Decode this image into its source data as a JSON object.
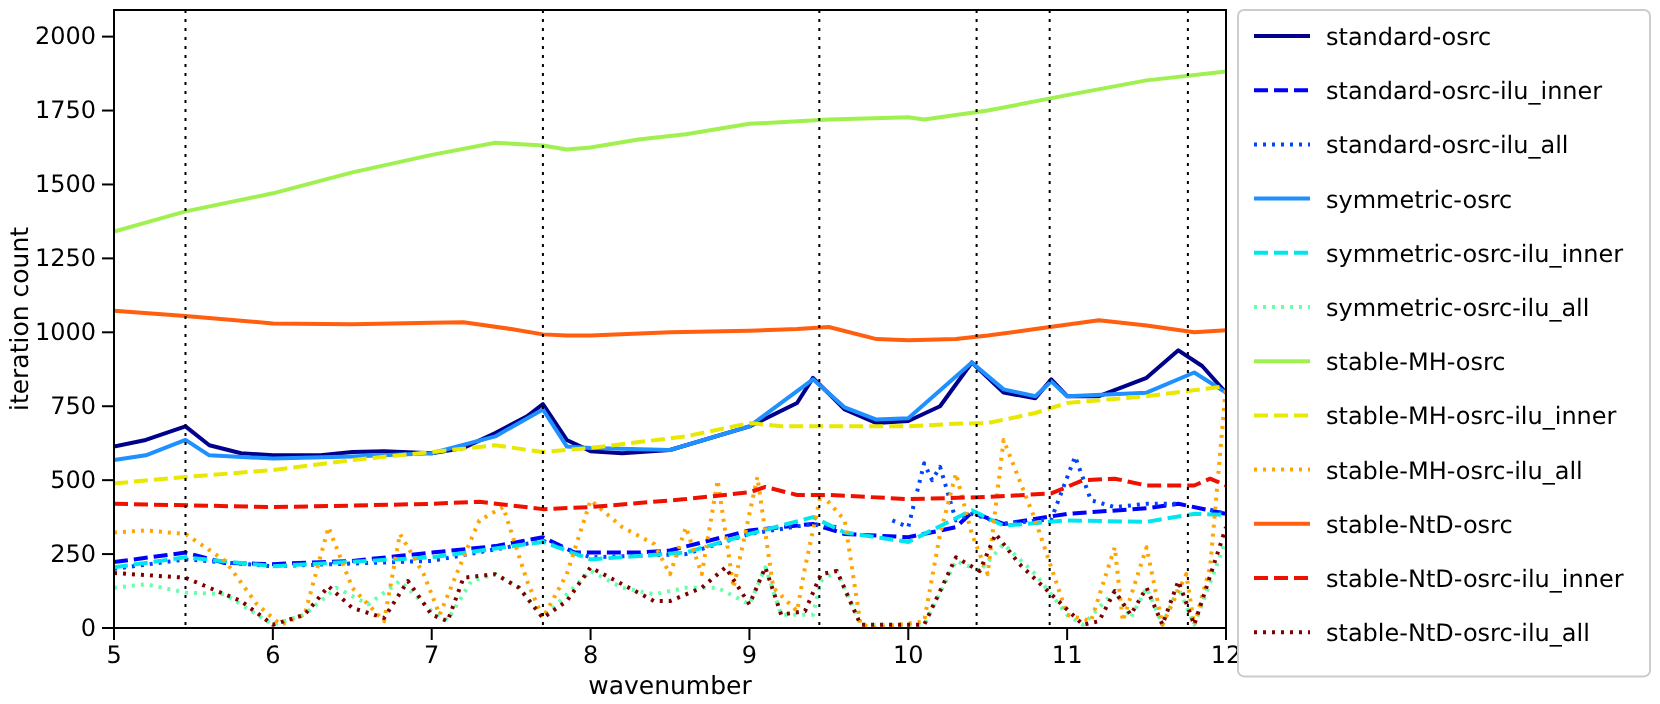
{
  "chart_data": {
    "type": "line",
    "xlabel": "wavenumber",
    "ylabel": "iteration count",
    "xlim": [
      5,
      12
    ],
    "xticks": [
      5,
      6,
      7,
      8,
      9,
      10,
      11,
      12
    ],
    "ylim": [
      0,
      2090
    ],
    "yticks": [
      0,
      250,
      500,
      750,
      1000,
      1250,
      1500,
      1750,
      2000
    ],
    "grid": false,
    "legend": "right",
    "marker": "none",
    "ref_lines": [
      {
        "axis": "x",
        "value": 5.45,
        "color": "#000000",
        "line_style": "dotted"
      },
      {
        "axis": "x",
        "value": 7.7,
        "color": "#000000",
        "line_style": "dotted"
      },
      {
        "axis": "x",
        "value": 9.44,
        "color": "#000000",
        "line_style": "dotted"
      },
      {
        "axis": "x",
        "value": 10.43,
        "color": "#000000",
        "line_style": "dotted"
      },
      {
        "axis": "x",
        "value": 10.89,
        "color": "#000000",
        "line_style": "dotted"
      },
      {
        "axis": "x",
        "value": 11.76,
        "color": "#000000",
        "line_style": "dotted"
      }
    ],
    "series": [
      {
        "name": "standard-osrc",
        "color": "#00008b",
        "line_style": "solid",
        "x": [
          5,
          5.2,
          5.45,
          5.6,
          5.8,
          6,
          6.3,
          6.5,
          6.7,
          7,
          7.2,
          7.4,
          7.6,
          7.7,
          7.85,
          8,
          8.2,
          8.5,
          9,
          9.3,
          9.4,
          9.6,
          9.8,
          10,
          10.2,
          10.4,
          10.6,
          10.8,
          10.9,
          11,
          11.2,
          11.5,
          11.7,
          11.85,
          12
        ],
        "values": [
          614,
          636,
          682,
          618,
          591,
          584,
          584,
          595,
          598,
          591,
          609,
          659,
          716,
          757,
          636,
          598,
          591,
          602,
          682,
          761,
          846,
          739,
          693,
          700,
          750,
          898,
          796,
          777,
          841,
          784,
          784,
          846,
          939,
          886,
          796
        ]
      },
      {
        "name": "standard-osrc-ilu_inner",
        "color": "#0000ff",
        "line_style": "dashed",
        "x": [
          5,
          5.45,
          5.7,
          6,
          6.5,
          7,
          7.4,
          7.7,
          7.9,
          8.3,
          8.5,
          9,
          9.4,
          9.6,
          10,
          10.3,
          10.4,
          10.6,
          11,
          11.5,
          11.7,
          12
        ],
        "values": [
          223,
          255,
          220,
          216,
          227,
          255,
          277,
          307,
          255,
          255,
          262,
          330,
          352,
          318,
          307,
          341,
          391,
          352,
          386,
          405,
          420,
          386
        ]
      },
      {
        "name": "standard-osrc-ilu_all",
        "color": "#0044ff",
        "line_style": "dotted",
        "x": [
          5,
          5.45,
          6,
          7,
          7.7,
          8,
          8.6,
          9,
          9.4,
          9.55,
          9.63,
          9.75,
          9.87,
          9.9,
          10,
          10.1,
          10.15,
          10.2,
          10.3,
          10.4,
          10.6,
          10.9,
          11.05,
          11.15,
          11.3,
          11.5,
          11.69,
          11.72,
          11.79,
          11.86,
          11.9,
          12
        ],
        "values": [
          200,
          232,
          209,
          227,
          295,
          239,
          250,
          318,
          352,
          341,
          null,
          null,
          null,
          364,
          341,
          557,
          500,
          545,
          364,
          386,
          352,
          368,
          580,
          432,
          409,
          420,
          420,
          null,
          null,
          null,
          400,
          386
        ]
      },
      {
        "name": "symmetric-osrc",
        "color": "#1e90ff",
        "line_style": "solid",
        "x": [
          5,
          5.2,
          5.45,
          5.6,
          6,
          6.5,
          7,
          7.4,
          7.7,
          7.85,
          8,
          8.5,
          9,
          9.4,
          9.6,
          9.8,
          10,
          10.4,
          10.6,
          10.8,
          10.9,
          11,
          11.5,
          11.8,
          12
        ],
        "values": [
          568,
          584,
          636,
          584,
          573,
          580,
          591,
          648,
          739,
          614,
          609,
          602,
          682,
          841,
          746,
          705,
          709,
          898,
          807,
          784,
          834,
          784,
          796,
          864,
          796
        ]
      },
      {
        "name": "symmetric-osrc-ilu_inner",
        "color": "#00e5ee",
        "line_style": "dashed",
        "x": [
          5,
          5.45,
          6,
          7,
          7.7,
          8,
          8.6,
          9,
          9.4,
          9.6,
          10,
          10.4,
          10.6,
          11,
          11.5,
          11.8,
          12
        ],
        "values": [
          205,
          239,
          209,
          239,
          291,
          232,
          255,
          318,
          375,
          323,
          291,
          398,
          346,
          364,
          359,
          386,
          382
        ]
      },
      {
        "name": "symmetric-osrc-ilu_all",
        "color": "#66ffaa",
        "line_style": "dotted",
        "x": [
          5,
          5.2,
          5.45,
          5.7,
          6,
          6.2,
          6.4,
          6.6,
          6.8,
          7,
          7.1,
          7.25,
          7.4,
          7.55,
          7.7,
          8,
          8.2,
          8.4,
          8.6,
          8.8,
          9,
          9.1,
          9.2,
          9.4,
          9.45,
          9.55,
          9.7,
          10.1,
          10.3,
          10.45,
          10.6,
          10.8,
          11,
          11.1,
          11.3,
          11.4,
          11.5,
          11.6,
          11.7,
          11.8,
          12
        ],
        "values": [
          136,
          148,
          120,
          114,
          11,
          45,
          136,
          80,
          159,
          57,
          27,
          159,
          182,
          136,
          34,
          193,
          136,
          114,
          136,
          136,
          80,
          205,
          45,
          45,
          159,
          193,
          11,
          11,
          227,
          193,
          284,
          182,
          45,
          11,
          125,
          34,
          136,
          11,
          136,
          11,
          295
        ]
      },
      {
        "name": "stable-MH-osrc",
        "color": "#a0f050",
        "line_style": "solid",
        "x": [
          5,
          5.45,
          6,
          6.5,
          7,
          7.4,
          7.7,
          7.85,
          8,
          8.3,
          8.6,
          9,
          9.5,
          10,
          10.1,
          10.5,
          11,
          11.5,
          12
        ],
        "values": [
          1341,
          1409,
          1470,
          1541,
          1600,
          1641,
          1632,
          1618,
          1625,
          1652,
          1670,
          1705,
          1720,
          1727,
          1720,
          1750,
          1802,
          1852,
          1882
        ]
      },
      {
        "name": "stable-MH-osrc-ilu_inner",
        "color": "#e8e800",
        "line_style": "dashed",
        "x": [
          5,
          5.45,
          6,
          6.5,
          7,
          7.4,
          7.7,
          8,
          8.6,
          9,
          9.2,
          9.5,
          10,
          10.3,
          10.5,
          10.8,
          11,
          11.5,
          12
        ],
        "values": [
          489,
          511,
          534,
          568,
          595,
          618,
          595,
          609,
          648,
          693,
          682,
          682,
          682,
          691,
          693,
          727,
          761,
          784,
          818
        ]
      },
      {
        "name": "stable-MH-osrc-ilu_all",
        "color": "#ffa500",
        "line_style": "dotted",
        "x": [
          5,
          5.2,
          5.45,
          5.7,
          5.9,
          6.05,
          6.2,
          6.35,
          6.5,
          6.7,
          6.8,
          6.95,
          7.05,
          7.2,
          7.3,
          7.45,
          7.6,
          7.7,
          7.85,
          8,
          8.2,
          8.4,
          8.5,
          8.6,
          8.7,
          8.8,
          8.9,
          9.05,
          9.15,
          9.3,
          9.35,
          9.45,
          9.6,
          9.7,
          9.8,
          10.1,
          10.2,
          10.3,
          10.4,
          10.5,
          10.6,
          10.7,
          10.8,
          10.9,
          11,
          11.15,
          11.3,
          11.35,
          11.5,
          11.6,
          11.75,
          11.8,
          11.9,
          12
        ],
        "values": [
          323,
          330,
          318,
          227,
          80,
          11,
          45,
          341,
          136,
          23,
          318,
          182,
          45,
          239,
          364,
          409,
          159,
          34,
          182,
          432,
          341,
          284,
          182,
          341,
          182,
          500,
          136,
          511,
          136,
          57,
          205,
          455,
          364,
          11,
          0,
          23,
          318,
          523,
          318,
          182,
          636,
          500,
          364,
          205,
          45,
          23,
          273,
          23,
          273,
          11,
          182,
          11,
          205,
          818
        ]
      },
      {
        "name": "stable-NtD-osrc",
        "color": "#ff5f0f",
        "line_style": "solid",
        "x": [
          5,
          5.45,
          6,
          6.5,
          7,
          7.2,
          7.5,
          7.7,
          7.85,
          8,
          8.5,
          9,
          9.3,
          9.5,
          9.8,
          10,
          10.3,
          10.5,
          10.8,
          11.2,
          11.5,
          11.8,
          12
        ],
        "values": [
          1073,
          1055,
          1030,
          1027,
          1032,
          1034,
          1011,
          993,
          989,
          989,
          1000,
          1005,
          1011,
          1018,
          977,
          973,
          977,
          989,
          1011,
          1041,
          1023,
          1000,
          1007
        ]
      },
      {
        "name": "stable-NtD-osrc-ilu_inner",
        "color": "#ee1100",
        "line_style": "dashed",
        "x": [
          5,
          6,
          6.5,
          7,
          7.3,
          7.7,
          8,
          8.6,
          9,
          9.1,
          9.3,
          9.5,
          10,
          10.5,
          10.9,
          11.1,
          11.3,
          11.5,
          11.8,
          11.9,
          12
        ],
        "values": [
          420,
          409,
          414,
          420,
          427,
          402,
          409,
          436,
          459,
          477,
          450,
          450,
          436,
          443,
          455,
          500,
          505,
          482,
          482,
          505,
          482
        ]
      },
      {
        "name": "stable-NtD-osrc-ilu_all",
        "color": "#800000",
        "line_style": "dotted",
        "x": [
          5,
          5.45,
          5.8,
          6,
          6.2,
          6.35,
          6.5,
          6.7,
          6.85,
          7,
          7.1,
          7.2,
          7.4,
          7.55,
          7.7,
          7.85,
          8,
          8.2,
          8.4,
          8.5,
          8.7,
          8.85,
          9,
          9.1,
          9.2,
          9.35,
          9.45,
          9.55,
          9.7,
          10.1,
          10.3,
          10.45,
          10.55,
          10.7,
          10.9,
          11.1,
          11.2,
          11.3,
          11.4,
          11.5,
          11.6,
          11.7,
          11.8,
          12
        ],
        "values": [
          186,
          170,
          91,
          11,
          45,
          141,
          68,
          34,
          159,
          45,
          23,
          170,
          182,
          136,
          34,
          91,
          205,
          148,
          91,
          91,
          136,
          205,
          80,
          205,
          45,
          57,
          182,
          193,
          11,
          11,
          239,
          193,
          318,
          216,
          114,
          11,
          23,
          125,
          45,
          136,
          11,
          159,
          11,
          341
        ]
      }
    ]
  }
}
